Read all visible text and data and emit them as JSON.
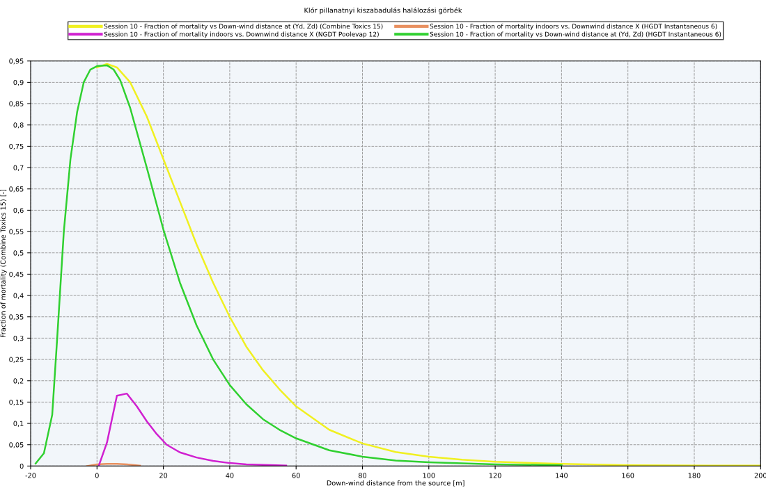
{
  "chart_data": {
    "type": "line",
    "title": "Klór pillanatnyi kiszabadulás halálozási görbék",
    "xlabel": "Down-wind distance from the source [m]",
    "ylabel": "Fraction of mortality (Combine Toxics 15) [-]",
    "xlim": [
      -20,
      200
    ],
    "xticks": [
      -20,
      0,
      20,
      40,
      60,
      80,
      100,
      120,
      140,
      160,
      180,
      200
    ],
    "ylim": [
      0,
      0.95
    ],
    "yticks": [
      {
        "value": 0,
        "label": "0"
      },
      {
        "value": 0.05,
        "label": "0,05"
      },
      {
        "value": 0.1,
        "label": "0,1"
      },
      {
        "value": 0.15,
        "label": "0,15"
      },
      {
        "value": 0.2,
        "label": "0,2"
      },
      {
        "value": 0.25,
        "label": "0,25"
      },
      {
        "value": 0.3,
        "label": "0,3"
      },
      {
        "value": 0.35,
        "label": "0,35"
      },
      {
        "value": 0.4,
        "label": "0,4"
      },
      {
        "value": 0.45,
        "label": "0,45"
      },
      {
        "value": 0.5,
        "label": "0,5"
      },
      {
        "value": 0.55,
        "label": "0,55"
      },
      {
        "value": 0.6,
        "label": "0,6"
      },
      {
        "value": 0.65,
        "label": "0,65"
      },
      {
        "value": 0.7,
        "label": "0,7"
      },
      {
        "value": 0.75,
        "label": "0,75"
      },
      {
        "value": 0.8,
        "label": "0,8"
      },
      {
        "value": 0.85,
        "label": "0,85"
      },
      {
        "value": 0.9,
        "label": "0,9"
      },
      {
        "value": 0.95,
        "label": "0,95"
      }
    ],
    "grid": true,
    "legend": "top",
    "marker": "none",
    "line_style": "solid",
    "series": [
      {
        "name": "Session 10 - Fraction of mortality vs Down-wind distance at (Yd, Zd) (Combine Toxics 15)",
        "color": "#f0f020",
        "x": [
          0,
          3,
          6,
          10,
          15,
          20,
          25,
          30,
          35,
          40,
          45,
          50,
          55,
          60,
          70,
          80,
          90,
          100,
          110,
          120,
          140,
          160,
          190,
          200
        ],
        "values": [
          0.935,
          0.943,
          0.935,
          0.9,
          0.82,
          0.72,
          0.62,
          0.52,
          0.43,
          0.35,
          0.28,
          0.225,
          0.18,
          0.14,
          0.085,
          0.053,
          0.033,
          0.022,
          0.015,
          0.01,
          0.005,
          0.002,
          0.001,
          0.001
        ]
      },
      {
        "name": "Session 10 - Fraction of mortality indoors vs. Downwind distance X (HGDT Instantaneous 6)",
        "color": "#e89060",
        "x": [
          -3,
          0,
          3,
          6,
          9,
          13
        ],
        "values": [
          0,
          0.004,
          0.005,
          0.005,
          0.004,
          0.001
        ]
      },
      {
        "name": "Session 10 - Fraction of mortality indoors vs. Downwind distance X (NGDT Poolevap 12)",
        "color": "#d020d0",
        "x": [
          0.5,
          3,
          6,
          9,
          12,
          15,
          18,
          21,
          25,
          30,
          35,
          40,
          45,
          57
        ],
        "values": [
          0,
          0.055,
          0.165,
          0.17,
          0.14,
          0.105,
          0.075,
          0.05,
          0.032,
          0.02,
          0.012,
          0.007,
          0.004,
          0.001
        ]
      },
      {
        "name": "Session 10 - Fraction of mortality vs Down-wind distance at (Yd, Zd) (HGDT Instantaneous 6)",
        "color": "#30d030",
        "x": [
          -18.5,
          -16,
          -13.5,
          -12,
          -10,
          -8,
          -6,
          -4,
          -2,
          0,
          3,
          5,
          7,
          10,
          15,
          20,
          25,
          30,
          35,
          40,
          45,
          50,
          55,
          60,
          70,
          80,
          90,
          100,
          120,
          140
        ],
        "values": [
          0.006,
          0.03,
          0.12,
          0.3,
          0.55,
          0.72,
          0.83,
          0.9,
          0.93,
          0.938,
          0.94,
          0.93,
          0.905,
          0.84,
          0.7,
          0.555,
          0.43,
          0.33,
          0.25,
          0.19,
          0.145,
          0.11,
          0.085,
          0.065,
          0.037,
          0.022,
          0.013,
          0.009,
          0.004,
          0.002
        ]
      }
    ]
  }
}
